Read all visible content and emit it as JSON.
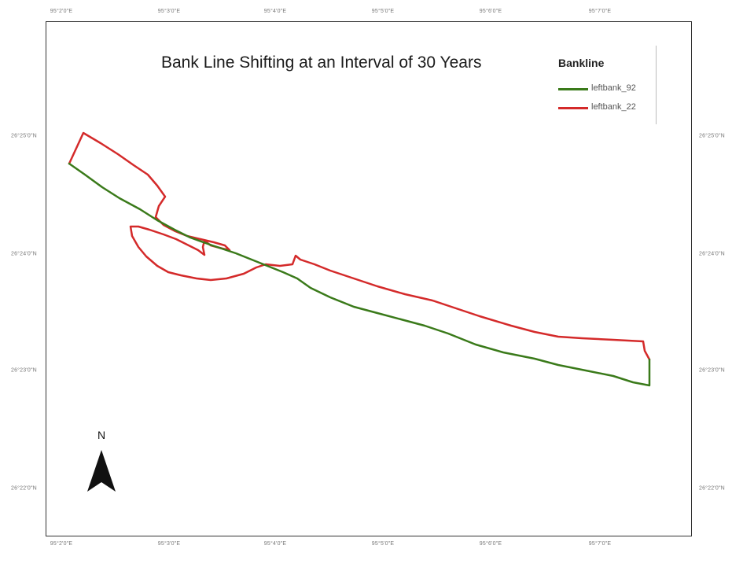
{
  "map": {
    "title": "Bank Line Shifting at an Interval of 30 Years",
    "north_label": "N",
    "colors": {
      "frame": "#333333",
      "background": "#ffffff"
    }
  },
  "legend": {
    "title": "Bankline",
    "items": [
      {
        "label": "leftbank_92",
        "color": "#3a7a1a"
      },
      {
        "label": "leftbank_22",
        "color": "#d42a2a"
      }
    ]
  },
  "ticks": {
    "top": [
      "95°2'0\"E",
      "95°3'0\"E",
      "95°4'0\"E",
      "95°5'0\"E",
      "95°6'0\"E",
      "95°7'0\"E"
    ],
    "bottom": [
      "95°2'0\"E",
      "95°3'0\"E",
      "95°4'0\"E",
      "95°5'0\"E",
      "95°6'0\"E",
      "95°7'0\"E"
    ],
    "left": [
      "26°25'0\"N",
      "26°24'0\"N",
      "26°23'0\"N",
      "26°22'0\"N"
    ],
    "right": [
      "26°25'0\"N",
      "26°24'0\"N",
      "26°23'0\"N",
      "26°22'0\"N"
    ]
  },
  "icons": {
    "north_arrow": "north-arrow-icon"
  }
}
